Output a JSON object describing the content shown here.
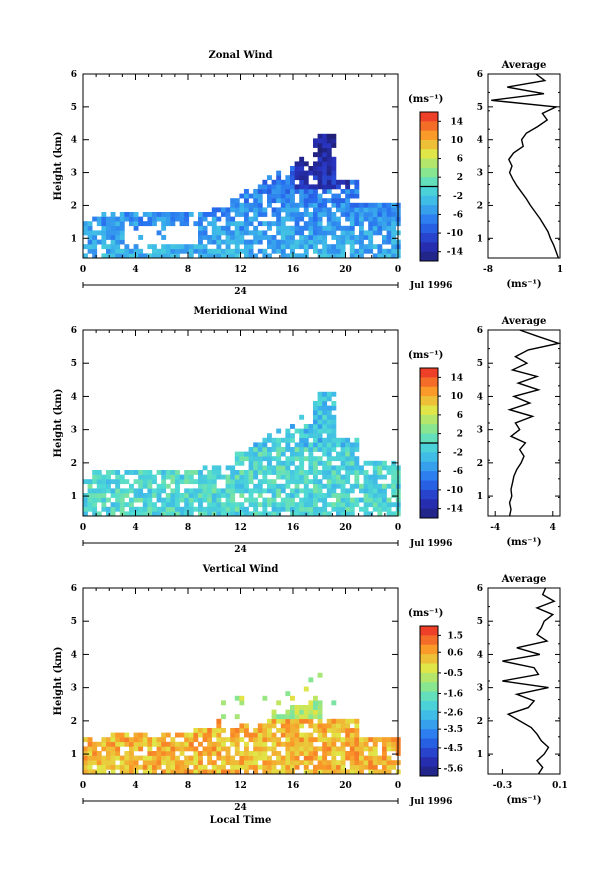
{
  "date_label": "Jul 1996",
  "day_label": "24",
  "charts": [
    {
      "id": "zonal",
      "title": "Zonal Wind",
      "ylabel": "Height (km)",
      "xlabel": "",
      "x_ticks": [
        "0",
        "4",
        "8",
        "12",
        "16",
        "20",
        "0"
      ],
      "y_ticks": [
        "1",
        "2",
        "3",
        "4",
        "5",
        "6"
      ],
      "colorbar_unit": "(ms⁻¹)",
      "colorbar_ticks": [
        "14",
        "10",
        "6",
        "2",
        "-2",
        "-6",
        "-10",
        "-14"
      ],
      "colorbar_range": [
        -16,
        16
      ],
      "colorbar_zero": 0,
      "profile_title": "Average",
      "profile_unit": "(ms⁻¹)",
      "profile_x_ticks": [
        "-8",
        "1"
      ],
      "profile_xlim": [
        -8,
        1
      ],
      "profile_y_ticks": [
        "1",
        "2",
        "3",
        "4",
        "5",
        "6"
      ]
    },
    {
      "id": "meridional",
      "title": "Meridional Wind",
      "ylabel": "Height (km)",
      "xlabel": "",
      "x_ticks": [
        "0",
        "4",
        "8",
        "12",
        "16",
        "20",
        "0"
      ],
      "y_ticks": [
        "1",
        "2",
        "3",
        "4",
        "5",
        "6"
      ],
      "colorbar_unit": "(ms⁻¹)",
      "colorbar_ticks": [
        "14",
        "10",
        "6",
        "2",
        "-2",
        "-6",
        "-10",
        "-14"
      ],
      "colorbar_range": [
        -16,
        16
      ],
      "colorbar_zero": 0,
      "profile_title": "Average",
      "profile_unit": "(ms⁻¹)",
      "profile_x_ticks": [
        "-4",
        "4"
      ],
      "profile_xlim": [
        -5,
        5
      ],
      "profile_y_ticks": [
        "1",
        "2",
        "3",
        "4",
        "5",
        "6"
      ]
    },
    {
      "id": "vertical",
      "title": "Vertical Wind",
      "ylabel": "Height (km)",
      "xlabel": "Local Time",
      "x_ticks": [
        "0",
        "4",
        "8",
        "12",
        "16",
        "20",
        "0"
      ],
      "y_ticks": [
        "1",
        "2",
        "3",
        "4",
        "5",
        "6"
      ],
      "colorbar_unit": "(ms⁻¹)",
      "colorbar_ticks": [
        "1.5",
        "0.6",
        "-0.5",
        "-1.6",
        "-2.6",
        "-3.5",
        "-4.5",
        "-5.6"
      ],
      "colorbar_range": [
        -6,
        2
      ],
      "colorbar_zero": null,
      "profile_title": "Average",
      "profile_unit": "(ms⁻¹)",
      "profile_x_ticks": [
        "-0.3",
        "0.1"
      ],
      "profile_xlim": [
        -0.4,
        0.1
      ],
      "profile_y_ticks": [
        "1",
        "2",
        "3",
        "4",
        "5",
        "6"
      ]
    }
  ],
  "chart_data": [
    {
      "type": "heatmap",
      "title": "Zonal Wind",
      "xlabel": "",
      "ylabel": "Height (km)",
      "xlim": [
        0,
        24
      ],
      "ylim": [
        0.4,
        6
      ],
      "value_range": [
        -16,
        16
      ],
      "profile": {
        "title": "Average",
        "heights": [
          0.4,
          0.6,
          0.8,
          1.0,
          1.2,
          1.4,
          1.6,
          1.8,
          2.0,
          2.2,
          2.4,
          2.6,
          2.8,
          3.0,
          3.2,
          3.4,
          3.6,
          3.8,
          4.0,
          4.2,
          4.4,
          4.6,
          4.8,
          5.0,
          5.2,
          5.4,
          5.6,
          5.8,
          6.0
        ],
        "values": [
          0.8,
          0.5,
          0.2,
          -0.2,
          -0.5,
          -1.0,
          -1.5,
          -2.1,
          -2.7,
          -3.2,
          -3.8,
          -4.4,
          -4.9,
          -5.3,
          -5.0,
          -5.4,
          -4.8,
          -3.6,
          -3.8,
          -3.2,
          -1.8,
          -0.6,
          -1.2,
          0.5,
          -7.6,
          -1.0,
          -5.6,
          -0.9,
          -2.0
        ]
      }
    },
    {
      "type": "heatmap",
      "title": "Meridional Wind",
      "xlabel": "",
      "ylabel": "Height (km)",
      "xlim": [
        0,
        24
      ],
      "ylim": [
        0.4,
        6
      ],
      "value_range": [
        -16,
        16
      ],
      "profile": {
        "title": "Average",
        "heights": [
          0.4,
          0.6,
          0.8,
          1.0,
          1.2,
          1.4,
          1.6,
          1.8,
          2.0,
          2.2,
          2.4,
          2.6,
          2.8,
          3.0,
          3.2,
          3.4,
          3.6,
          3.8,
          4.0,
          4.2,
          4.4,
          4.6,
          4.8,
          5.0,
          5.2,
          5.4,
          5.6,
          5.8,
          6.0
        ],
        "values": [
          -2.0,
          -1.8,
          -2.0,
          -1.7,
          -1.8,
          -1.6,
          -1.4,
          -1.0,
          -0.4,
          0.0,
          -0.6,
          0.2,
          -1.8,
          -0.6,
          -1.2,
          1.2,
          -2.0,
          0.8,
          -1.4,
          2.0,
          -0.8,
          1.8,
          -1.6,
          0.4,
          -1.2,
          0.6,
          4.8,
          2.0,
          -0.6
        ]
      }
    },
    {
      "type": "heatmap",
      "title": "Vertical Wind",
      "xlabel": "Local Time",
      "ylabel": "Height (km)",
      "xlim": [
        0,
        24
      ],
      "ylim": [
        0.4,
        6
      ],
      "value_range": [
        -6,
        2
      ],
      "profile": {
        "title": "Average",
        "heights": [
          0.4,
          0.6,
          0.8,
          1.0,
          1.2,
          1.4,
          1.6,
          1.8,
          2.0,
          2.2,
          2.4,
          2.6,
          2.8,
          3.0,
          3.2,
          3.4,
          3.6,
          3.8,
          4.0,
          4.2,
          4.4,
          4.6,
          4.8,
          5.0,
          5.2,
          5.4,
          5.6,
          5.8,
          6.0
        ],
        "values": [
          -0.05,
          -0.02,
          -0.06,
          -0.01,
          0.02,
          -0.03,
          -0.06,
          -0.1,
          -0.18,
          -0.26,
          -0.12,
          -0.08,
          -0.2,
          0.02,
          -0.3,
          -0.05,
          -0.08,
          -0.3,
          -0.04,
          -0.2,
          0.01,
          -0.06,
          -0.03,
          -0.01,
          0.05,
          -0.06,
          0.06,
          -0.02,
          0.0
        ]
      }
    }
  ]
}
